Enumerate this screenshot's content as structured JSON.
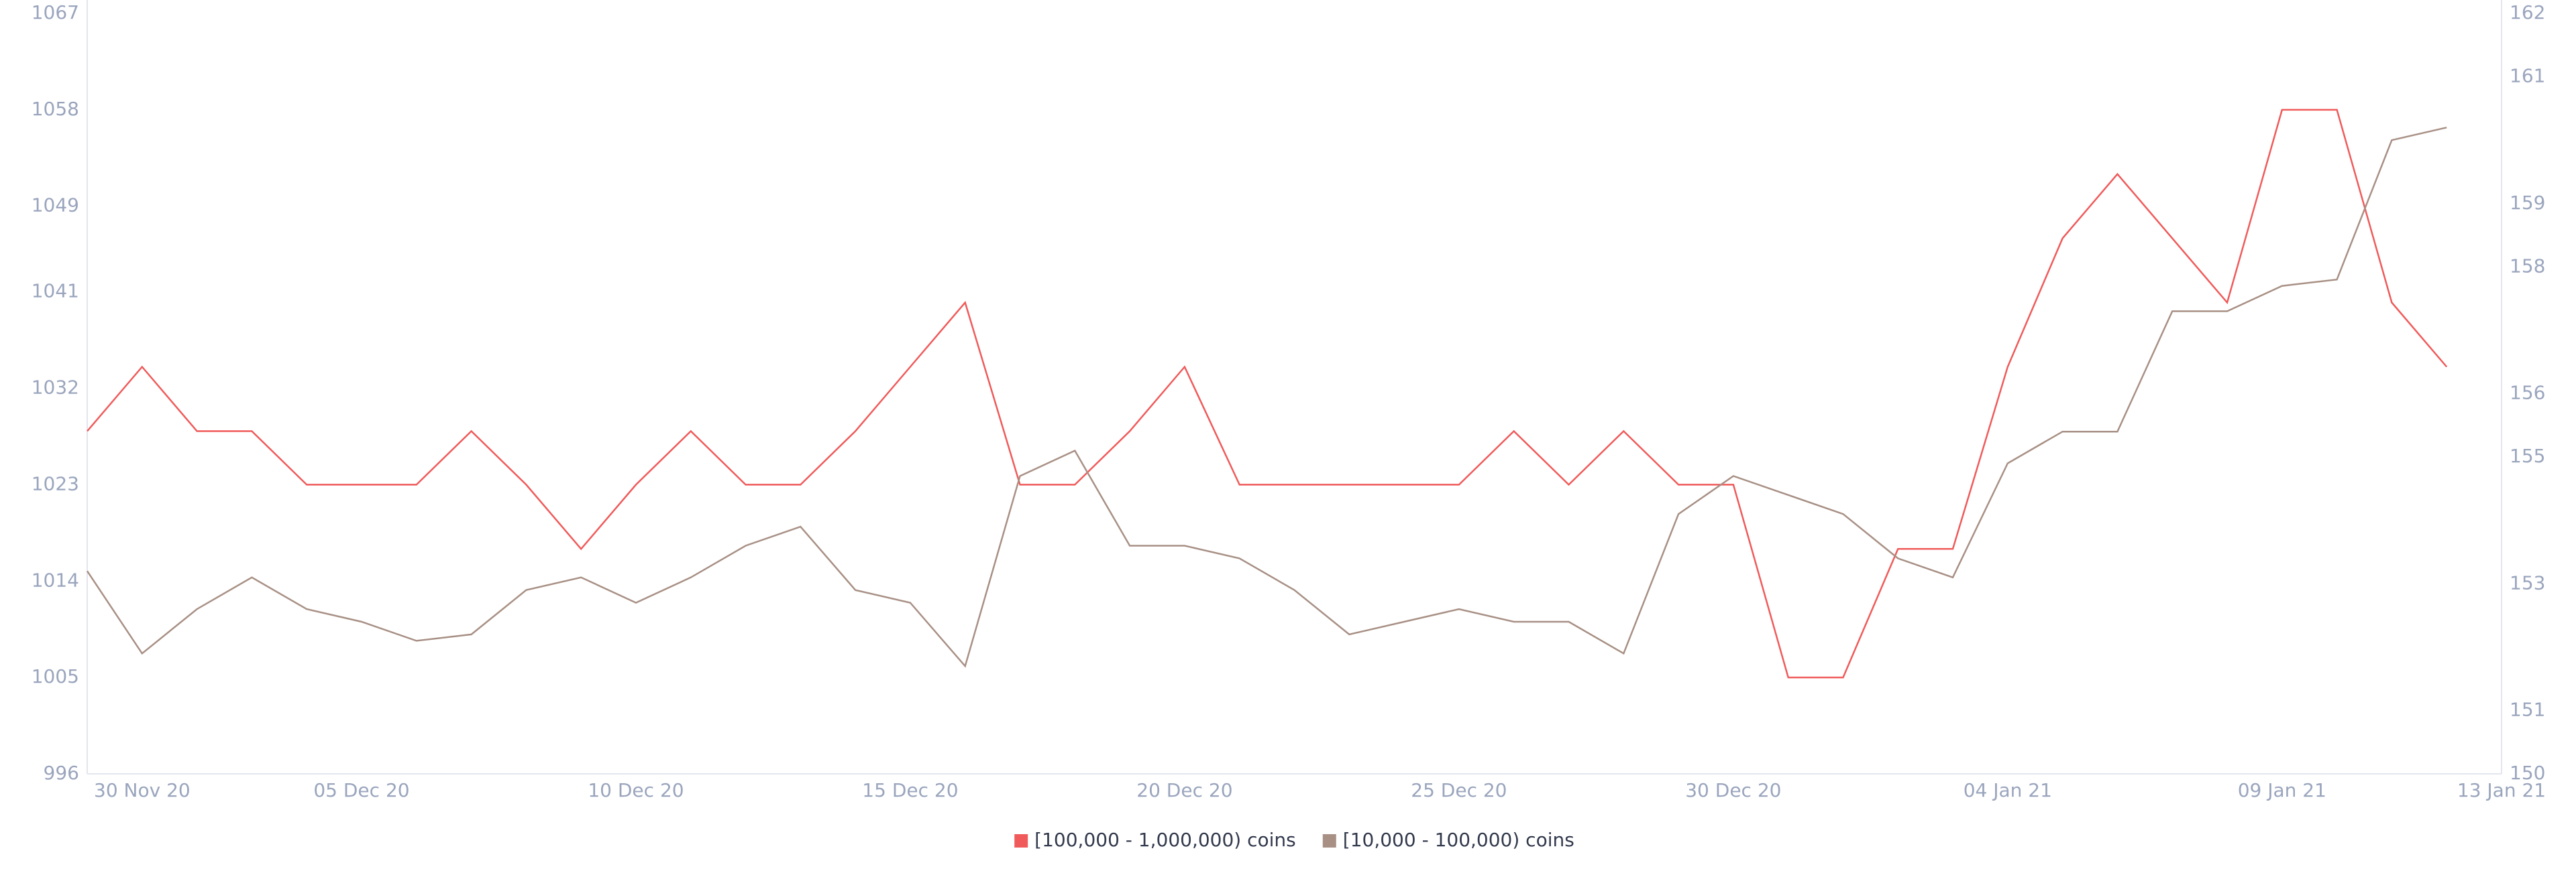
{
  "chart_data": {
    "type": "line",
    "x": [
      "2020-11-30",
      "2020-12-01",
      "2020-12-02",
      "2020-12-03",
      "2020-12-04",
      "2020-12-05",
      "2020-12-06",
      "2020-12-07",
      "2020-12-08",
      "2020-12-09",
      "2020-12-10",
      "2020-12-11",
      "2020-12-12",
      "2020-12-13",
      "2020-12-14",
      "2020-12-15",
      "2020-12-16",
      "2020-12-17",
      "2020-12-18",
      "2020-12-19",
      "2020-12-20",
      "2020-12-21",
      "2020-12-22",
      "2020-12-23",
      "2020-12-24",
      "2020-12-25",
      "2020-12-26",
      "2020-12-27",
      "2020-12-28",
      "2020-12-29",
      "2020-12-30",
      "2020-12-31",
      "2021-01-01",
      "2021-01-02",
      "2021-01-03",
      "2021-01-04",
      "2021-01-05",
      "2021-01-06",
      "2021-01-07",
      "2021-01-08",
      "2021-01-09",
      "2021-01-10",
      "2021-01-11",
      "2021-01-12"
    ],
    "xlim": [
      "2020-11-30",
      "2021-01-13"
    ],
    "xticks": [
      {
        "value": "2020-11-30",
        "label": "30 Nov 20"
      },
      {
        "value": "2020-12-05",
        "label": "05 Dec 20"
      },
      {
        "value": "2020-12-10",
        "label": "10 Dec 20"
      },
      {
        "value": "2020-12-15",
        "label": "15 Dec 20"
      },
      {
        "value": "2020-12-20",
        "label": "20 Dec 20"
      },
      {
        "value": "2020-12-25",
        "label": "25 Dec 20"
      },
      {
        "value": "2020-12-30",
        "label": "30 Dec 20"
      },
      {
        "value": "2021-01-04",
        "label": "04 Jan 21"
      },
      {
        "value": "2021-01-09",
        "label": "09 Jan 21"
      },
      {
        "value": "2021-01-13",
        "label": "13 Jan 21"
      }
    ],
    "ylim": [
      996,
      1067
    ],
    "yticks": [
      996,
      1005,
      1014,
      1023,
      1032,
      1041,
      1049,
      1058,
      1067
    ],
    "y2lim": [
      150,
      162
    ],
    "y2ticks": [
      150,
      151,
      153,
      155,
      156,
      158,
      159,
      161,
      162
    ],
    "grid": false,
    "legend": "bottom",
    "series": [
      {
        "name": "[100,000  - 1,000,000) coins",
        "color": "#f05a5a",
        "values": [
          1028,
          1034,
          1028,
          1028,
          1023,
          1023,
          1023,
          1028,
          1023,
          1017,
          1023,
          1028,
          1023,
          1023,
          1028,
          1034,
          1040,
          1023,
          1023,
          1028,
          1034,
          1023,
          1023,
          1023,
          1023,
          1023,
          1028,
          1023,
          1028,
          1023,
          1023,
          1005,
          1005,
          1017,
          1017,
          1034,
          1046,
          1052,
          1046,
          1040,
          1058,
          1058,
          1040,
          1034
        ]
      },
      {
        "name": "[10,000 - 100,000) coins",
        "color": "#a89085",
        "axis": "y2",
        "values": [
          153.2,
          151.9,
          152.6,
          153.1,
          152.6,
          152.4,
          152.1,
          152.2,
          152.9,
          153.1,
          152.7,
          153.1,
          153.6,
          153.9,
          152.9,
          152.7,
          151.7,
          154.7,
          155.1,
          153.6,
          153.6,
          153.4,
          152.9,
          152.2,
          152.4,
          152.6,
          152.4,
          152.4,
          151.9,
          154.1,
          154.7,
          154.4,
          154.1,
          153.4,
          153.1,
          154.9,
          155.4,
          155.4,
          157.3,
          157.3,
          157.7,
          157.8,
          160.0,
          160.2
        ]
      }
    ]
  }
}
